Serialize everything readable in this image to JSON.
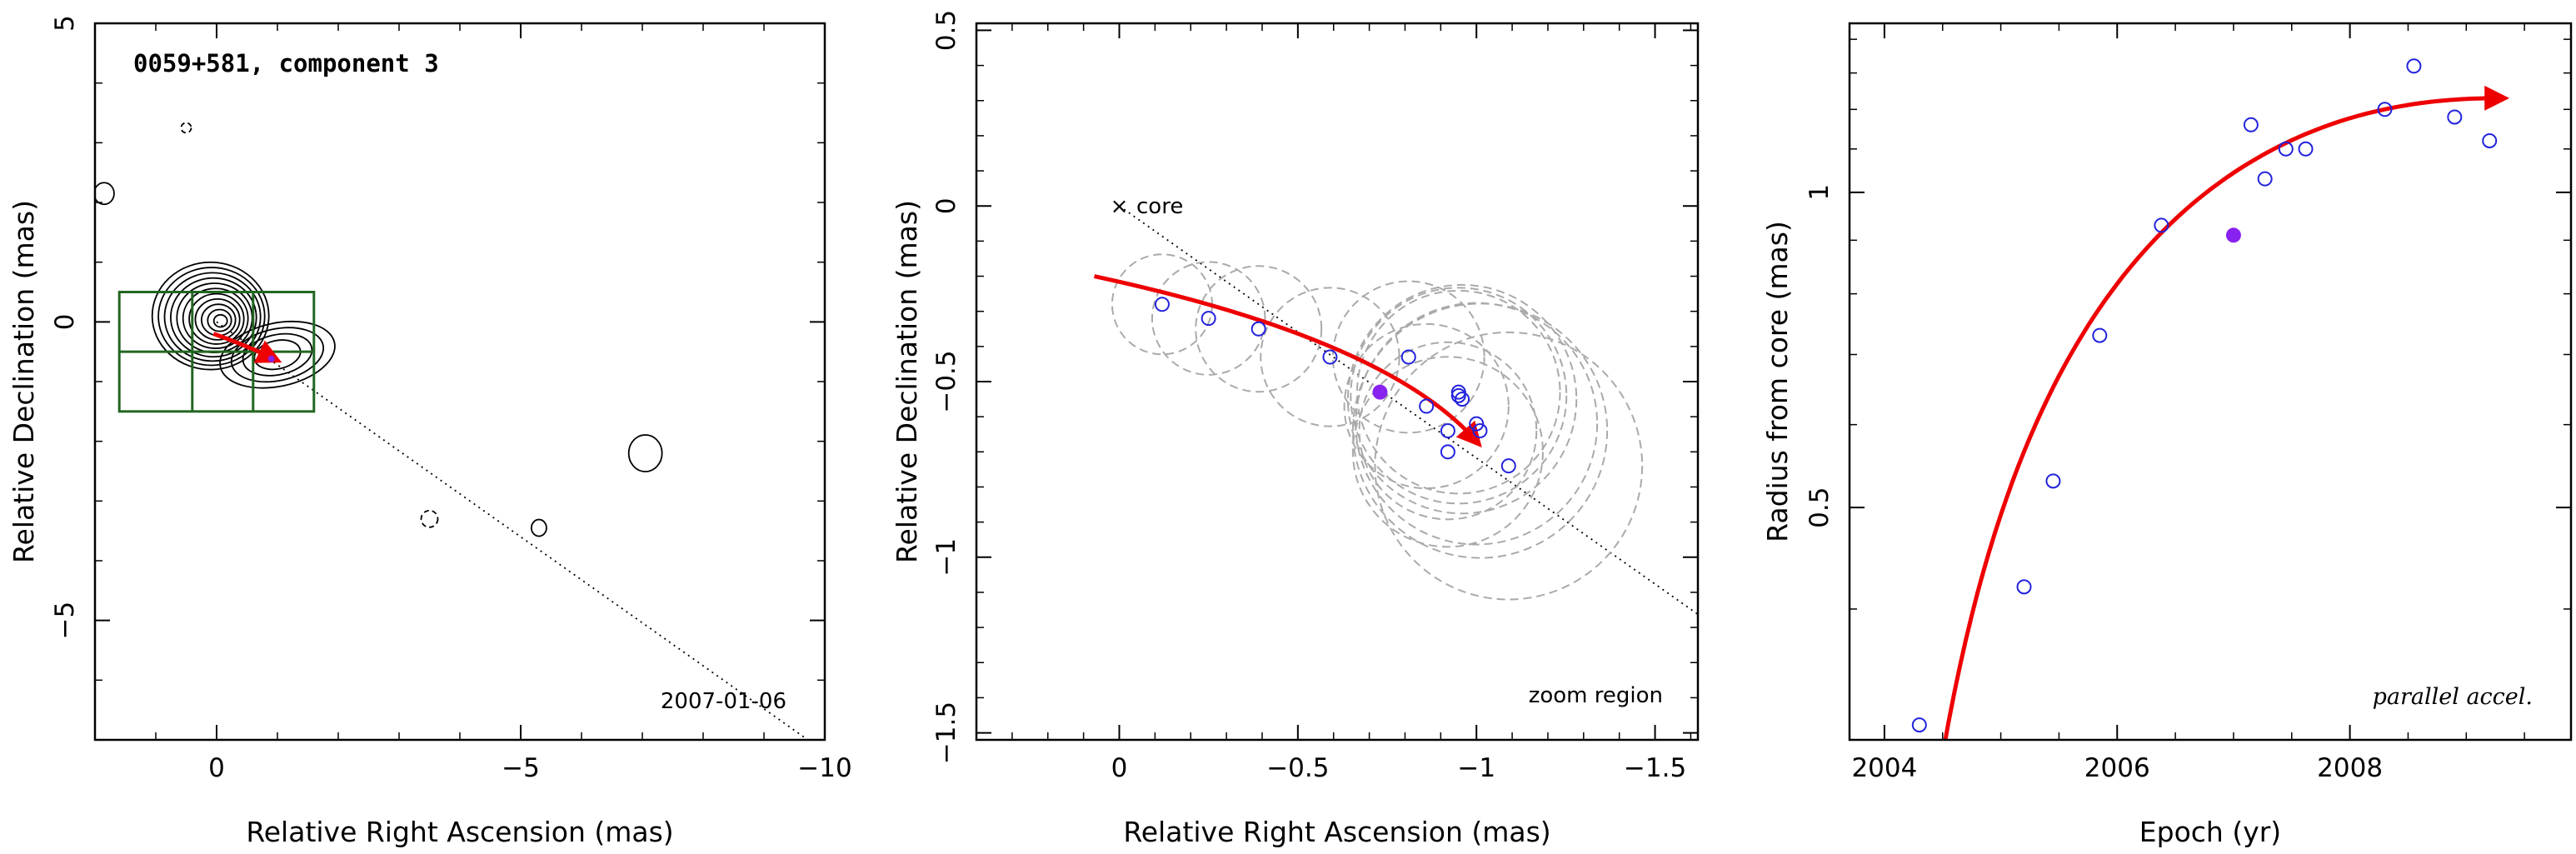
{
  "colors": {
    "trajectory": "#ee0000",
    "points": "#2222dd",
    "highlight": "#8822ee",
    "box": "#226622",
    "circles": "#aaaaaa"
  },
  "chart_data": [
    {
      "type": "scatter",
      "panel": "contour map",
      "title": "0059+581, component 3",
      "date": "2007-01-06",
      "xlabel": "Relative Right Ascension (mas)",
      "ylabel": "Relative Declination (mas)",
      "xlim": [
        2,
        -10
      ],
      "ylim": [
        -7,
        5
      ],
      "xticks": [
        "0",
        "−5",
        "−10"
      ],
      "yticks": [
        "5",
        "0",
        "−5"
      ],
      "jet_axis_pa_slope": 0.72,
      "zoom_box": {
        "ra": [
          1.6,
          -1.6
        ],
        "dec": [
          -1.5,
          0.5
        ]
      }
    },
    {
      "type": "scatter",
      "panel": "zoom region",
      "label": "zoom region",
      "core_label": "core",
      "xlabel": "Relative Right Ascension (mas)",
      "ylabel": "Relative Declination (mas)",
      "xlim": [
        0.4,
        -1.62
      ],
      "ylim": [
        -1.52,
        0.52
      ],
      "xticks": [
        "0",
        "−0.5",
        "−1",
        "−1.5"
      ],
      "yticks": [
        "0.5",
        "0",
        "−0.5",
        "−1",
        "−1.5"
      ],
      "points": [
        {
          "x": -0.12,
          "y": -0.28
        },
        {
          "x": -0.25,
          "y": -0.32
        },
        {
          "x": -0.39,
          "y": -0.35
        },
        {
          "x": -0.59,
          "y": -0.43
        },
        {
          "x": -0.81,
          "y": -0.43
        },
        {
          "x": -0.86,
          "y": -0.57
        },
        {
          "x": -0.92,
          "y": -0.64
        },
        {
          "x": -0.92,
          "y": -0.7
        },
        {
          "x": -0.95,
          "y": -0.53
        },
        {
          "x": -0.95,
          "y": -0.54
        },
        {
          "x": -0.96,
          "y": -0.55
        },
        {
          "x": -1.0,
          "y": -0.62
        },
        {
          "x": -1.01,
          "y": -0.64
        },
        {
          "x": -1.09,
          "y": -0.74
        }
      ],
      "highlight_point": {
        "x": -0.73,
        "y": -0.53
      }
    },
    {
      "type": "scatter",
      "panel": "radius vs epoch",
      "label": "parallel accel.",
      "xlabel": "Epoch (yr)",
      "ylabel": "Radius from core (mas)",
      "xlim": [
        2003.7,
        2009.9
      ],
      "ylim": [
        0.3,
        1.45
      ],
      "xticks": [
        "2004",
        "2006",
        "2008"
      ],
      "yticks": [
        "0.5",
        "1"
      ],
      "points": [
        {
          "x": 2004.3,
          "y": 0.31
        },
        {
          "x": 2005.2,
          "y": 0.42
        },
        {
          "x": 2005.45,
          "y": 0.53
        },
        {
          "x": 2005.85,
          "y": 0.73
        },
        {
          "x": 2006.38,
          "y": 0.93
        },
        {
          "x": 2007.15,
          "y": 1.16
        },
        {
          "x": 2007.27,
          "y": 1.03
        },
        {
          "x": 2007.45,
          "y": 1.1
        },
        {
          "x": 2007.62,
          "y": 1.1
        },
        {
          "x": 2008.3,
          "y": 1.2
        },
        {
          "x": 2008.55,
          "y": 1.32
        },
        {
          "x": 2008.9,
          "y": 1.18
        },
        {
          "x": 2009.2,
          "y": 1.12
        }
      ],
      "highlight_point": {
        "x": 2007.0,
        "y": 0.91
      }
    }
  ]
}
